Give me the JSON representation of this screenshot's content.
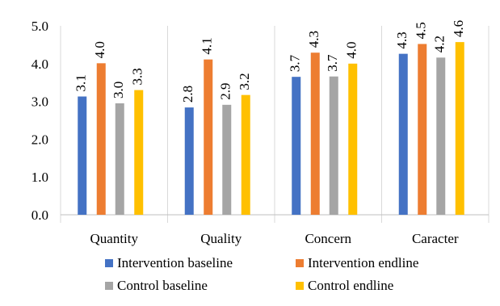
{
  "chart_data": {
    "type": "bar",
    "categories": [
      "Quantity",
      "Quality",
      "Concern",
      "Caracter"
    ],
    "series": [
      {
        "name": "Intervention baseline",
        "values": [
          3.1,
          2.8,
          3.7,
          4.3
        ],
        "color": "#4472C4"
      },
      {
        "name": "Intervention endline",
        "values": [
          4.0,
          4.1,
          4.3,
          4.5
        ],
        "color": "#ED7D31"
      },
      {
        "name": "Control baseline",
        "values": [
          3.0,
          2.9,
          3.7,
          4.2
        ],
        "color": "#A5A5A5"
      },
      {
        "name": "Control endline",
        "values": [
          3.3,
          3.2,
          4.0,
          4.6
        ],
        "color": "#FFC000"
      }
    ],
    "bar_values": [
      [
        3.13,
        2.84,
        3.65,
        4.26
      ],
      [
        4.01,
        4.11,
        4.29,
        4.52
      ],
      [
        2.95,
        2.91,
        3.66,
        4.16
      ],
      [
        3.3,
        3.17,
        4.0,
        4.57
      ]
    ],
    "yticks": [
      "0.0",
      "1.0",
      "2.0",
      "3.0",
      "4.0",
      "5.0"
    ],
    "ylim": [
      0,
      5
    ],
    "title": "",
    "xlabel": "",
    "ylabel": "",
    "grid": "vertical category separators",
    "legend": "bottom"
  }
}
